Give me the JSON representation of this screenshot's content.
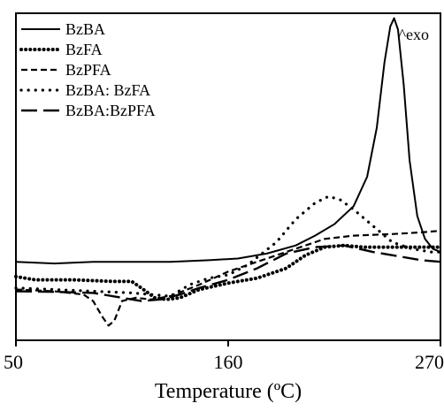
{
  "chart_data": {
    "type": "line",
    "title": "",
    "xlabel": "Temperature (ºC)",
    "ylabel": "",
    "xlim": [
      50,
      270
    ],
    "ylim": [
      0,
      1
    ],
    "xticks": [
      50,
      160,
      270
    ],
    "annotation": "^exo",
    "legend_position": "top-left",
    "series": [
      {
        "name": "BzBA",
        "style": "solid",
        "points": [
          [
            50,
            0.24
          ],
          [
            70,
            0.235
          ],
          [
            90,
            0.24
          ],
          [
            110,
            0.24
          ],
          [
            130,
            0.24
          ],
          [
            150,
            0.245
          ],
          [
            165,
            0.25
          ],
          [
            180,
            0.265
          ],
          [
            195,
            0.29
          ],
          [
            205,
            0.32
          ],
          [
            215,
            0.355
          ],
          [
            225,
            0.41
          ],
          [
            232,
            0.5
          ],
          [
            237,
            0.65
          ],
          [
            241,
            0.85
          ],
          [
            244,
            0.96
          ],
          [
            246,
            0.985
          ],
          [
            248,
            0.95
          ],
          [
            251,
            0.78
          ],
          [
            254,
            0.55
          ],
          [
            258,
            0.38
          ],
          [
            262,
            0.31
          ],
          [
            266,
            0.28
          ],
          [
            270,
            0.27
          ]
        ]
      },
      {
        "name": "BzFA",
        "style": "dotted",
        "points": [
          [
            50,
            0.195
          ],
          [
            60,
            0.185
          ],
          [
            80,
            0.185
          ],
          [
            100,
            0.18
          ],
          [
            110,
            0.18
          ],
          [
            115,
            0.16
          ],
          [
            122,
            0.13
          ],
          [
            128,
            0.125
          ],
          [
            135,
            0.13
          ],
          [
            145,
            0.155
          ],
          [
            160,
            0.175
          ],
          [
            175,
            0.19
          ],
          [
            190,
            0.22
          ],
          [
            200,
            0.26
          ],
          [
            210,
            0.285
          ],
          [
            220,
            0.29
          ],
          [
            230,
            0.285
          ],
          [
            240,
            0.285
          ],
          [
            255,
            0.285
          ],
          [
            270,
            0.285
          ]
        ]
      },
      {
        "name": "BzPFA",
        "style": "dashed",
        "points": [
          [
            50,
            0.155
          ],
          [
            70,
            0.15
          ],
          [
            85,
            0.14
          ],
          [
            90,
            0.12
          ],
          [
            95,
            0.07
          ],
          [
            98,
            0.045
          ],
          [
            101,
            0.06
          ],
          [
            105,
            0.12
          ],
          [
            112,
            0.13
          ],
          [
            120,
            0.125
          ],
          [
            130,
            0.135
          ],
          [
            145,
            0.17
          ],
          [
            160,
            0.21
          ],
          [
            175,
            0.24
          ],
          [
            190,
            0.27
          ],
          [
            200,
            0.29
          ],
          [
            210,
            0.31
          ],
          [
            225,
            0.32
          ],
          [
            245,
            0.325
          ],
          [
            260,
            0.33
          ],
          [
            270,
            0.335
          ]
        ]
      },
      {
        "name": "BzBA: BzFA",
        "style": "sparse-dotted",
        "points": [
          [
            50,
            0.16
          ],
          [
            70,
            0.155
          ],
          [
            90,
            0.15
          ],
          [
            110,
            0.145
          ],
          [
            120,
            0.14
          ],
          [
            130,
            0.135
          ],
          [
            140,
            0.17
          ],
          [
            150,
            0.19
          ],
          [
            160,
            0.2
          ],
          [
            170,
            0.23
          ],
          [
            185,
            0.3
          ],
          [
            195,
            0.37
          ],
          [
            205,
            0.42
          ],
          [
            212,
            0.44
          ],
          [
            218,
            0.43
          ],
          [
            225,
            0.4
          ],
          [
            235,
            0.35
          ],
          [
            245,
            0.3
          ],
          [
            255,
            0.28
          ],
          [
            265,
            0.27
          ],
          [
            270,
            0.27
          ]
        ]
      },
      {
        "name": "BzBA:BzPFA",
        "style": "long-dashed",
        "points": [
          [
            50,
            0.15
          ],
          [
            70,
            0.148
          ],
          [
            90,
            0.145
          ],
          [
            105,
            0.13
          ],
          [
            115,
            0.12
          ],
          [
            125,
            0.125
          ],
          [
            135,
            0.14
          ],
          [
            145,
            0.16
          ],
          [
            160,
            0.185
          ],
          [
            175,
            0.22
          ],
          [
            190,
            0.265
          ],
          [
            205,
            0.285
          ],
          [
            220,
            0.29
          ],
          [
            235,
            0.27
          ],
          [
            250,
            0.255
          ],
          [
            260,
            0.245
          ],
          [
            270,
            0.24
          ]
        ]
      }
    ]
  }
}
